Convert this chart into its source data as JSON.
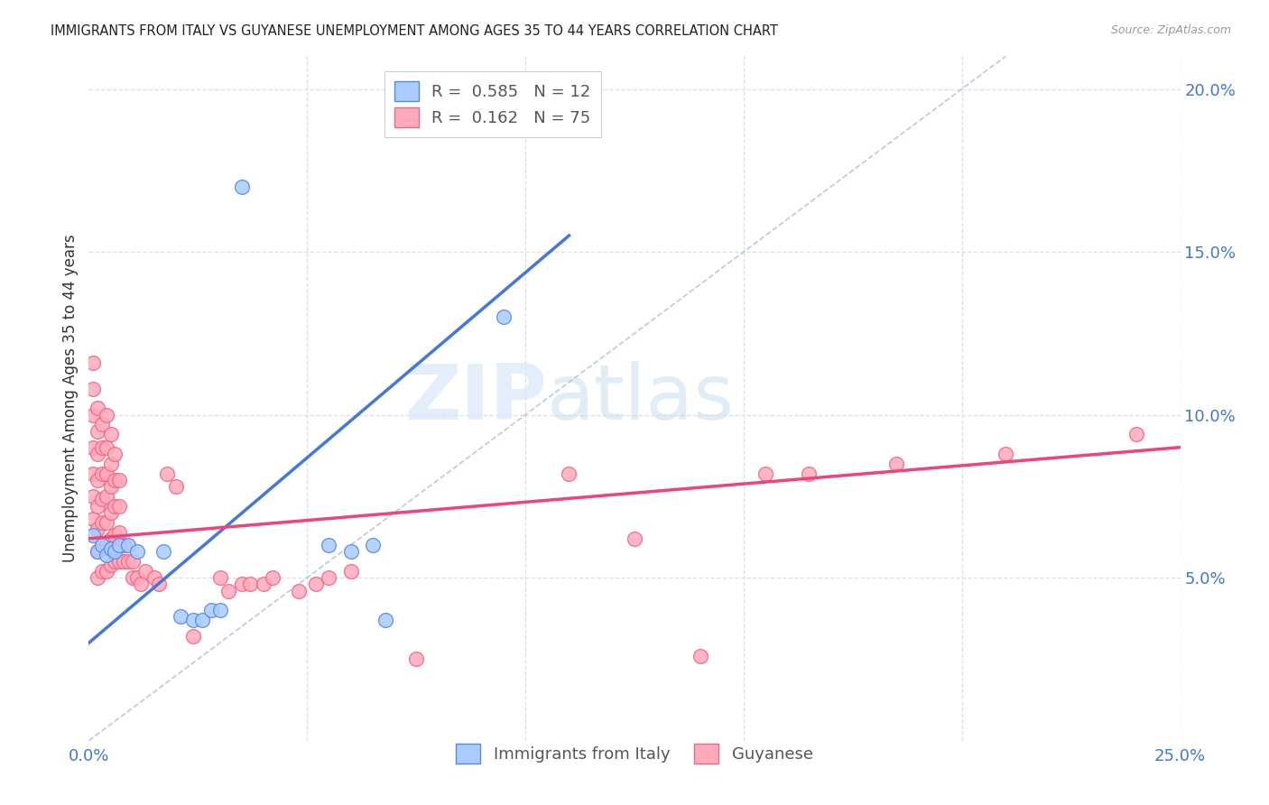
{
  "title": "IMMIGRANTS FROM ITALY VS GUYANESE UNEMPLOYMENT AMONG AGES 35 TO 44 YEARS CORRELATION CHART",
  "source": "Source: ZipAtlas.com",
  "ylabel": "Unemployment Among Ages 35 to 44 years",
  "xlim": [
    0.0,
    0.25
  ],
  "ylim": [
    0.0,
    0.21
  ],
  "italy_color": "#aaccff",
  "italy_edge_color": "#5588ee",
  "guyanese_color": "#ffaabb",
  "guyanese_edge_color": "#ee6688",
  "italy_line_color": "#4477dd",
  "guyanese_line_color": "#ee4477",
  "diagonal_color": "#aabbdd",
  "background_color": "#ffffff",
  "grid_color": "#ddddee",
  "italy_scatter": [
    [
      0.001,
      0.063
    ],
    [
      0.002,
      0.058
    ],
    [
      0.003,
      0.06
    ],
    [
      0.004,
      0.057
    ],
    [
      0.005,
      0.059
    ],
    [
      0.006,
      0.058
    ],
    [
      0.007,
      0.06
    ],
    [
      0.009,
      0.06
    ],
    [
      0.011,
      0.058
    ],
    [
      0.017,
      0.058
    ],
    [
      0.021,
      0.038
    ],
    [
      0.024,
      0.037
    ],
    [
      0.026,
      0.037
    ],
    [
      0.028,
      0.04
    ],
    [
      0.03,
      0.04
    ],
    [
      0.035,
      0.17
    ],
    [
      0.055,
      0.06
    ],
    [
      0.06,
      0.058
    ],
    [
      0.065,
      0.06
    ],
    [
      0.068,
      0.037
    ],
    [
      0.095,
      0.13
    ]
  ],
  "guyanese_scatter": [
    [
      0.001,
      0.068
    ],
    [
      0.001,
      0.075
    ],
    [
      0.001,
      0.082
    ],
    [
      0.001,
      0.09
    ],
    [
      0.001,
      0.1
    ],
    [
      0.001,
      0.108
    ],
    [
      0.001,
      0.116
    ],
    [
      0.002,
      0.05
    ],
    [
      0.002,
      0.058
    ],
    [
      0.002,
      0.065
    ],
    [
      0.002,
      0.072
    ],
    [
      0.002,
      0.08
    ],
    [
      0.002,
      0.088
    ],
    [
      0.002,
      0.095
    ],
    [
      0.002,
      0.102
    ],
    [
      0.003,
      0.052
    ],
    [
      0.003,
      0.06
    ],
    [
      0.003,
      0.067
    ],
    [
      0.003,
      0.074
    ],
    [
      0.003,
      0.082
    ],
    [
      0.003,
      0.09
    ],
    [
      0.003,
      0.097
    ],
    [
      0.004,
      0.052
    ],
    [
      0.004,
      0.06
    ],
    [
      0.004,
      0.067
    ],
    [
      0.004,
      0.075
    ],
    [
      0.004,
      0.082
    ],
    [
      0.004,
      0.09
    ],
    [
      0.004,
      0.1
    ],
    [
      0.005,
      0.054
    ],
    [
      0.005,
      0.062
    ],
    [
      0.005,
      0.07
    ],
    [
      0.005,
      0.078
    ],
    [
      0.005,
      0.085
    ],
    [
      0.005,
      0.094
    ],
    [
      0.006,
      0.055
    ],
    [
      0.006,
      0.063
    ],
    [
      0.006,
      0.072
    ],
    [
      0.006,
      0.08
    ],
    [
      0.006,
      0.088
    ],
    [
      0.007,
      0.055
    ],
    [
      0.007,
      0.064
    ],
    [
      0.007,
      0.072
    ],
    [
      0.007,
      0.08
    ],
    [
      0.008,
      0.055
    ],
    [
      0.008,
      0.06
    ],
    [
      0.009,
      0.055
    ],
    [
      0.01,
      0.05
    ],
    [
      0.01,
      0.055
    ],
    [
      0.011,
      0.05
    ],
    [
      0.012,
      0.048
    ],
    [
      0.013,
      0.052
    ],
    [
      0.015,
      0.05
    ],
    [
      0.016,
      0.048
    ],
    [
      0.018,
      0.082
    ],
    [
      0.02,
      0.078
    ],
    [
      0.024,
      0.032
    ],
    [
      0.03,
      0.05
    ],
    [
      0.032,
      0.046
    ],
    [
      0.035,
      0.048
    ],
    [
      0.037,
      0.048
    ],
    [
      0.04,
      0.048
    ],
    [
      0.042,
      0.05
    ],
    [
      0.048,
      0.046
    ],
    [
      0.052,
      0.048
    ],
    [
      0.055,
      0.05
    ],
    [
      0.06,
      0.052
    ],
    [
      0.075,
      0.025
    ],
    [
      0.11,
      0.082
    ],
    [
      0.125,
      0.062
    ],
    [
      0.14,
      0.026
    ],
    [
      0.155,
      0.082
    ],
    [
      0.165,
      0.082
    ],
    [
      0.185,
      0.085
    ],
    [
      0.21,
      0.088
    ],
    [
      0.24,
      0.094
    ]
  ],
  "italy_trendline": [
    [
      0.0,
      0.03
    ],
    [
      0.11,
      0.155
    ]
  ],
  "guyanese_trendline": [
    [
      0.0,
      0.062
    ],
    [
      0.25,
      0.09
    ]
  ],
  "diagonal_line": [
    [
      0.0,
      0.0
    ],
    [
      0.21,
      0.21
    ]
  ]
}
